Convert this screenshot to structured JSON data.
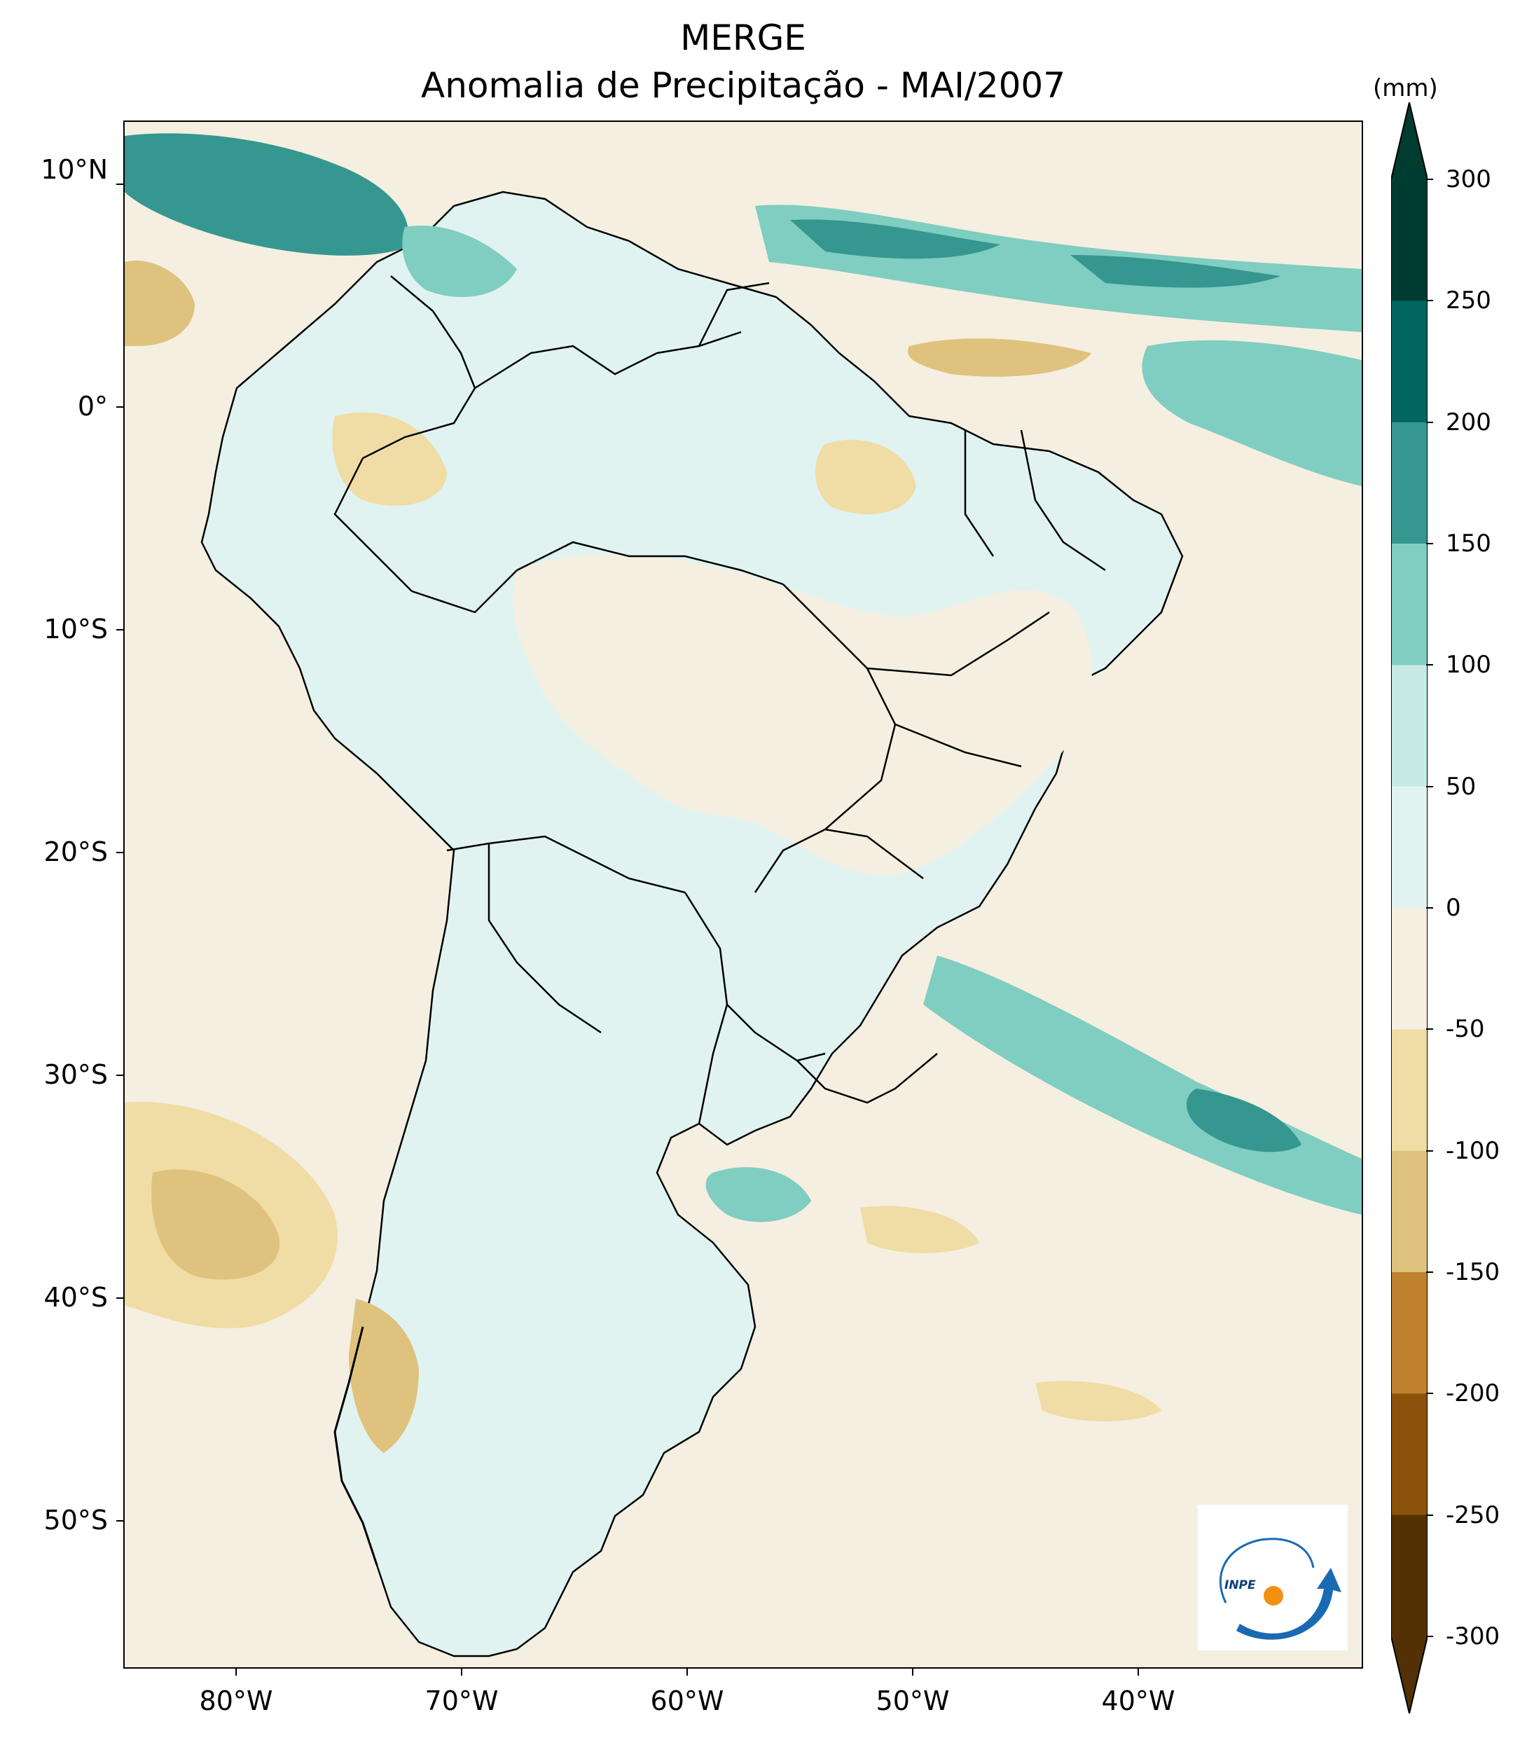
{
  "title": "MERGE",
  "subtitle": "Anomalia de Precipitação - MAI/2007",
  "colorbar": {
    "unit": "(mm)",
    "levels": [
      "300",
      "250",
      "200",
      "150",
      "100",
      "50",
      "0",
      "-50",
      "-100",
      "-150",
      "-200",
      "-250",
      "-300"
    ],
    "colors": [
      "#003c30",
      "#01665e",
      "#35978f",
      "#80cdc1",
      "#c7eae5",
      "#e0f3f0",
      "#f5efe1",
      "#f0dca5",
      "#dfc27d",
      "#bf812d",
      "#8c510a",
      "#543005"
    ],
    "overflow_high": "#003c30",
    "overflow_low": "#543005"
  },
  "axes": {
    "lat_labels": [
      "10°N",
      "0°",
      "10°S",
      "20°S",
      "30°S",
      "40°S",
      "50°S"
    ],
    "lon_labels": [
      "80°W",
      "70°W",
      "60°W",
      "50°W",
      "40°W"
    ],
    "lon_range": [
      "85°W",
      "30°W"
    ],
    "lat_range": [
      "12.5°N",
      "56°S"
    ]
  },
  "regions": {
    "itcz_wet": "#35978f",
    "amazon_mixed": "#e0f3f0",
    "argentina": "#e0f3f0",
    "chile_dry": "#dfc27d",
    "pacific_dry": "#f0dca5",
    "ocean_background": "#f5efe1",
    "land_outline": "#000000"
  },
  "logo": {
    "text": "INPE",
    "blue": "#1a6ab3",
    "orange": "#f29111"
  }
}
